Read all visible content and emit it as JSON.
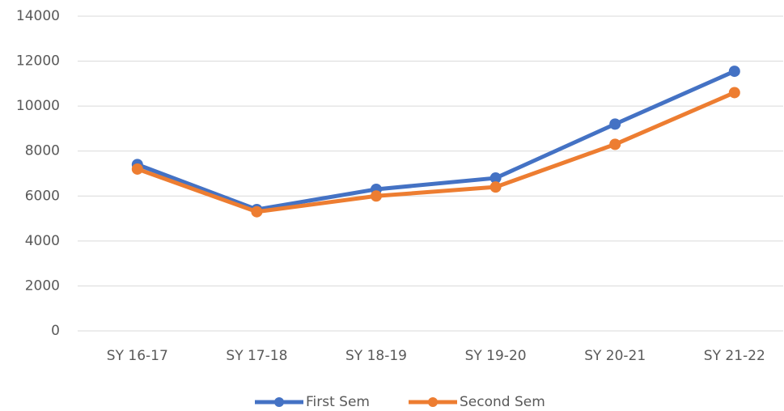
{
  "chart_data": {
    "type": "line",
    "categories": [
      "SY 16-17",
      "SY 17-18",
      "SY 18-19",
      "SY 19-20",
      "SY 20-21",
      "SY 21-22"
    ],
    "series": [
      {
        "name": "First Sem",
        "color": "#4472c4",
        "values": [
          7400,
          5400,
          6300,
          6800,
          9200,
          11550
        ]
      },
      {
        "name": "Second Sem",
        "color": "#ed7d31",
        "values": [
          7200,
          5300,
          6000,
          6400,
          8300,
          10600
        ]
      }
    ],
    "ylim": [
      0,
      14000
    ],
    "yticks": [
      0,
      2000,
      4000,
      6000,
      8000,
      10000,
      12000,
      14000
    ],
    "grid": true,
    "legend": "bottom"
  }
}
